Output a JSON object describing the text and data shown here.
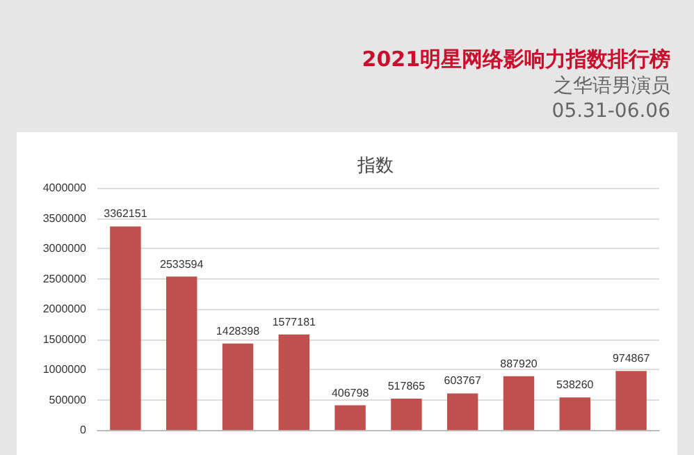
{
  "chart_data": {
    "type": "bar",
    "title": "2021明星网络影响力指数排行榜",
    "subtitle": "之华语男演员",
    "annotations": [
      "05.31-06.06",
      "指数"
    ],
    "categories": [
      null,
      null,
      null,
      null,
      null,
      null,
      null,
      null,
      null,
      null
    ],
    "values": [
      3362151,
      2533594,
      1428398,
      1577181,
      406798,
      517865,
      603767,
      887920,
      538260,
      974867
    ],
    "color": "#c0504d",
    "data_labels": true,
    "grid": "y",
    "ylim": [
      0,
      4000000
    ],
    "yticks": [
      0,
      500000,
      1000000,
      1500000,
      2000000,
      2500000,
      3000000,
      3500000,
      4000000
    ]
  }
}
